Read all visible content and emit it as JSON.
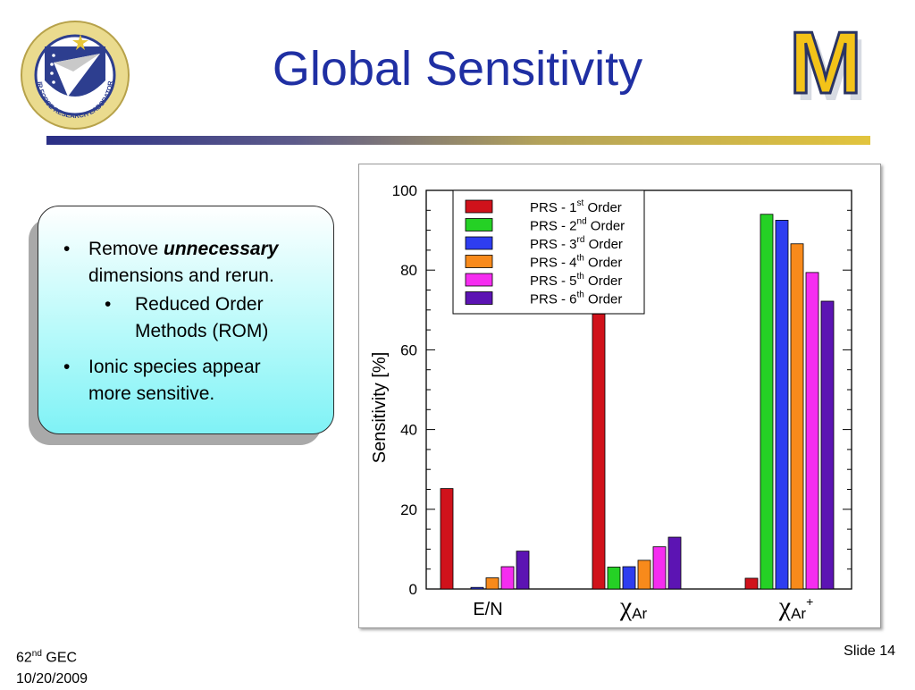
{
  "slide": {
    "title": "Global Sensitivity",
    "footer": {
      "ordinal": "62",
      "ordinal_sup": "nd",
      "event": "GEC",
      "date": "10/20/2009",
      "slide_number": "Slide 14"
    },
    "logo_left_text": "AIR FORCE RESEARCH LABORATORY",
    "logo_right_text": "M"
  },
  "callout": {
    "bullet_char": "•",
    "b1_pre": "Remove ",
    "b1_emph": "unnecessary",
    "b1_line2": "dimensions and rerun.",
    "sub1_line1": "Reduced Order",
    "sub1_line2": "Methods (ROM)",
    "b2_line1": "Ionic species appear",
    "b2_line2": "more sensitive."
  },
  "colors": {
    "title": "#1f2fa3",
    "series": [
      "#d0121b",
      "#25d125",
      "#2e3df0",
      "#f88a1b",
      "#f52df0",
      "#5c14b3"
    ]
  },
  "chart_data": {
    "type": "bar",
    "ylabel": "Sensitivity [%]",
    "ylim": [
      0,
      100
    ],
    "yticks": [
      "0",
      "20",
      "40",
      "60",
      "80",
      "100"
    ],
    "categories": [
      "E/N",
      "χAr",
      "χAr+"
    ],
    "category_labels": [
      {
        "main": "E/N",
        "sub": "",
        "sup": ""
      },
      {
        "main": "χ",
        "sub": "Ar",
        "sup": ""
      },
      {
        "main": "χ",
        "sub": "Ar",
        "sup": "+"
      }
    ],
    "legend_position": "top-left",
    "series": [
      {
        "name": "PRS - 1st Order",
        "prefix": "PRS - 1",
        "sup": "st",
        "suffix": " Order",
        "values": [
          25.2,
          69.0,
          2.7
        ]
      },
      {
        "name": "PRS - 2nd Order",
        "prefix": "PRS - 2",
        "sup": "nd",
        "suffix": " Order",
        "values": [
          0,
          5.5,
          94.0
        ]
      },
      {
        "name": "PRS - 3rd Order",
        "prefix": "PRS - 3",
        "sup": "rd",
        "suffix": " Order",
        "values": [
          0.4,
          5.6,
          92.5
        ]
      },
      {
        "name": "PRS - 4th Order",
        "prefix": "PRS - 4",
        "sup": "th",
        "suffix": " Order",
        "values": [
          2.8,
          7.2,
          86.6
        ]
      },
      {
        "name": "PRS - 5th Order",
        "prefix": "PRS - 5",
        "sup": "th",
        "suffix": " Order",
        "values": [
          5.6,
          10.6,
          79.4
        ]
      },
      {
        "name": "PRS - 6th Order",
        "prefix": "PRS - 6",
        "sup": "th",
        "suffix": " Order",
        "values": [
          9.5,
          13.0,
          72.2
        ]
      }
    ]
  }
}
